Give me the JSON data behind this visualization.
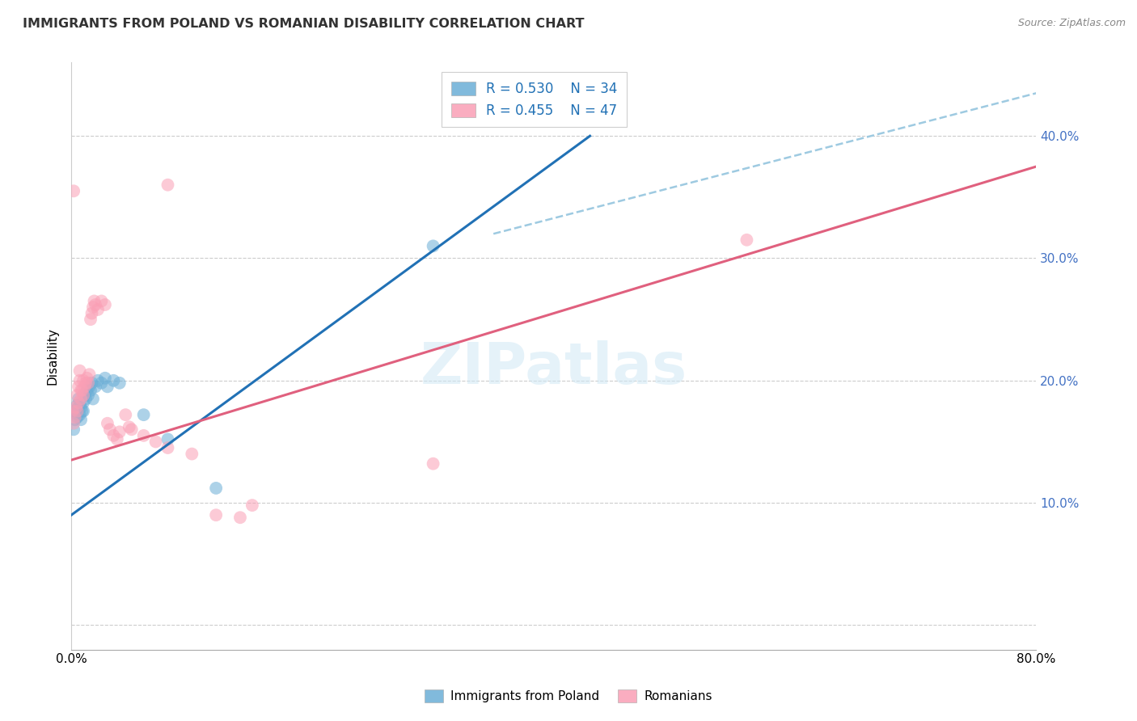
{
  "title": "IMMIGRANTS FROM POLAND VS ROMANIAN DISABILITY CORRELATION CHART",
  "source": "Source: ZipAtlas.com",
  "ylabel": "Disability",
  "xlabel": "",
  "xlim": [
    0.0,
    0.8
  ],
  "ylim": [
    -0.02,
    0.46
  ],
  "yticks": [
    0.0,
    0.1,
    0.2,
    0.3,
    0.4
  ],
  "ytick_labels": [
    "",
    "10.0%",
    "20.0%",
    "30.0%",
    "40.0%"
  ],
  "xticks": [
    0.0,
    0.1,
    0.2,
    0.3,
    0.4,
    0.5,
    0.6,
    0.7,
    0.8
  ],
  "xtick_labels": [
    "0.0%",
    "",
    "",
    "",
    "",
    "",
    "",
    "",
    "80.0%"
  ],
  "blue_color": "#6baed6",
  "pink_color": "#fa9fb5",
  "blue_line_color": "#2171b5",
  "pink_line_color": "#e0607e",
  "dashed_color": "#9ecae1",
  "R_blue": 0.53,
  "N_blue": 34,
  "R_pink": 0.455,
  "N_pink": 47,
  "legend_label_blue": "Immigrants from Poland",
  "legend_label_pink": "Romanians",
  "watermark": "ZIPatlas",
  "blue_line_x": [
    0.0,
    0.43
  ],
  "blue_line_y": [
    0.09,
    0.4
  ],
  "pink_line_x": [
    0.0,
    0.8
  ],
  "pink_line_y": [
    0.135,
    0.375
  ],
  "dashed_line_x": [
    0.35,
    0.8
  ],
  "dashed_line_y": [
    0.32,
    0.435
  ],
  "blue_points": [
    [
      0.001,
      0.175
    ],
    [
      0.002,
      0.16
    ],
    [
      0.003,
      0.168
    ],
    [
      0.004,
      0.173
    ],
    [
      0.005,
      0.17
    ],
    [
      0.005,
      0.18
    ],
    [
      0.006,
      0.178
    ],
    [
      0.006,
      0.185
    ],
    [
      0.007,
      0.172
    ],
    [
      0.007,
      0.18
    ],
    [
      0.008,
      0.168
    ],
    [
      0.008,
      0.178
    ],
    [
      0.009,
      0.175
    ],
    [
      0.01,
      0.182
    ],
    [
      0.01,
      0.175
    ],
    [
      0.011,
      0.188
    ],
    [
      0.012,
      0.185
    ],
    [
      0.013,
      0.192
    ],
    [
      0.014,
      0.188
    ],
    [
      0.015,
      0.195
    ],
    [
      0.016,
      0.192
    ],
    [
      0.017,
      0.198
    ],
    [
      0.018,
      0.185
    ],
    [
      0.02,
      0.195
    ],
    [
      0.022,
      0.2
    ],
    [
      0.025,
      0.198
    ],
    [
      0.028,
      0.202
    ],
    [
      0.03,
      0.195
    ],
    [
      0.035,
      0.2
    ],
    [
      0.04,
      0.198
    ],
    [
      0.06,
      0.172
    ],
    [
      0.08,
      0.152
    ],
    [
      0.12,
      0.112
    ],
    [
      0.3,
      0.31
    ]
  ],
  "pink_points": [
    [
      0.001,
      0.175
    ],
    [
      0.002,
      0.165
    ],
    [
      0.003,
      0.17
    ],
    [
      0.004,
      0.178
    ],
    [
      0.005,
      0.175
    ],
    [
      0.005,
      0.188
    ],
    [
      0.006,
      0.182
    ],
    [
      0.006,
      0.195
    ],
    [
      0.007,
      0.2
    ],
    [
      0.007,
      0.208
    ],
    [
      0.008,
      0.185
    ],
    [
      0.008,
      0.192
    ],
    [
      0.009,
      0.192
    ],
    [
      0.01,
      0.188
    ],
    [
      0.01,
      0.2
    ],
    [
      0.011,
      0.195
    ],
    [
      0.012,
      0.198
    ],
    [
      0.013,
      0.202
    ],
    [
      0.014,
      0.198
    ],
    [
      0.015,
      0.205
    ],
    [
      0.016,
      0.25
    ],
    [
      0.017,
      0.255
    ],
    [
      0.018,
      0.26
    ],
    [
      0.019,
      0.265
    ],
    [
      0.02,
      0.262
    ],
    [
      0.022,
      0.258
    ],
    [
      0.025,
      0.265
    ],
    [
      0.028,
      0.262
    ],
    [
      0.03,
      0.165
    ],
    [
      0.032,
      0.16
    ],
    [
      0.035,
      0.155
    ],
    [
      0.038,
      0.152
    ],
    [
      0.04,
      0.158
    ],
    [
      0.045,
      0.172
    ],
    [
      0.048,
      0.162
    ],
    [
      0.05,
      0.16
    ],
    [
      0.06,
      0.155
    ],
    [
      0.07,
      0.15
    ],
    [
      0.08,
      0.145
    ],
    [
      0.1,
      0.14
    ],
    [
      0.12,
      0.09
    ],
    [
      0.14,
      0.088
    ],
    [
      0.15,
      0.098
    ],
    [
      0.3,
      0.132
    ],
    [
      0.56,
      0.315
    ],
    [
      0.08,
      0.36
    ],
    [
      0.002,
      0.355
    ]
  ]
}
